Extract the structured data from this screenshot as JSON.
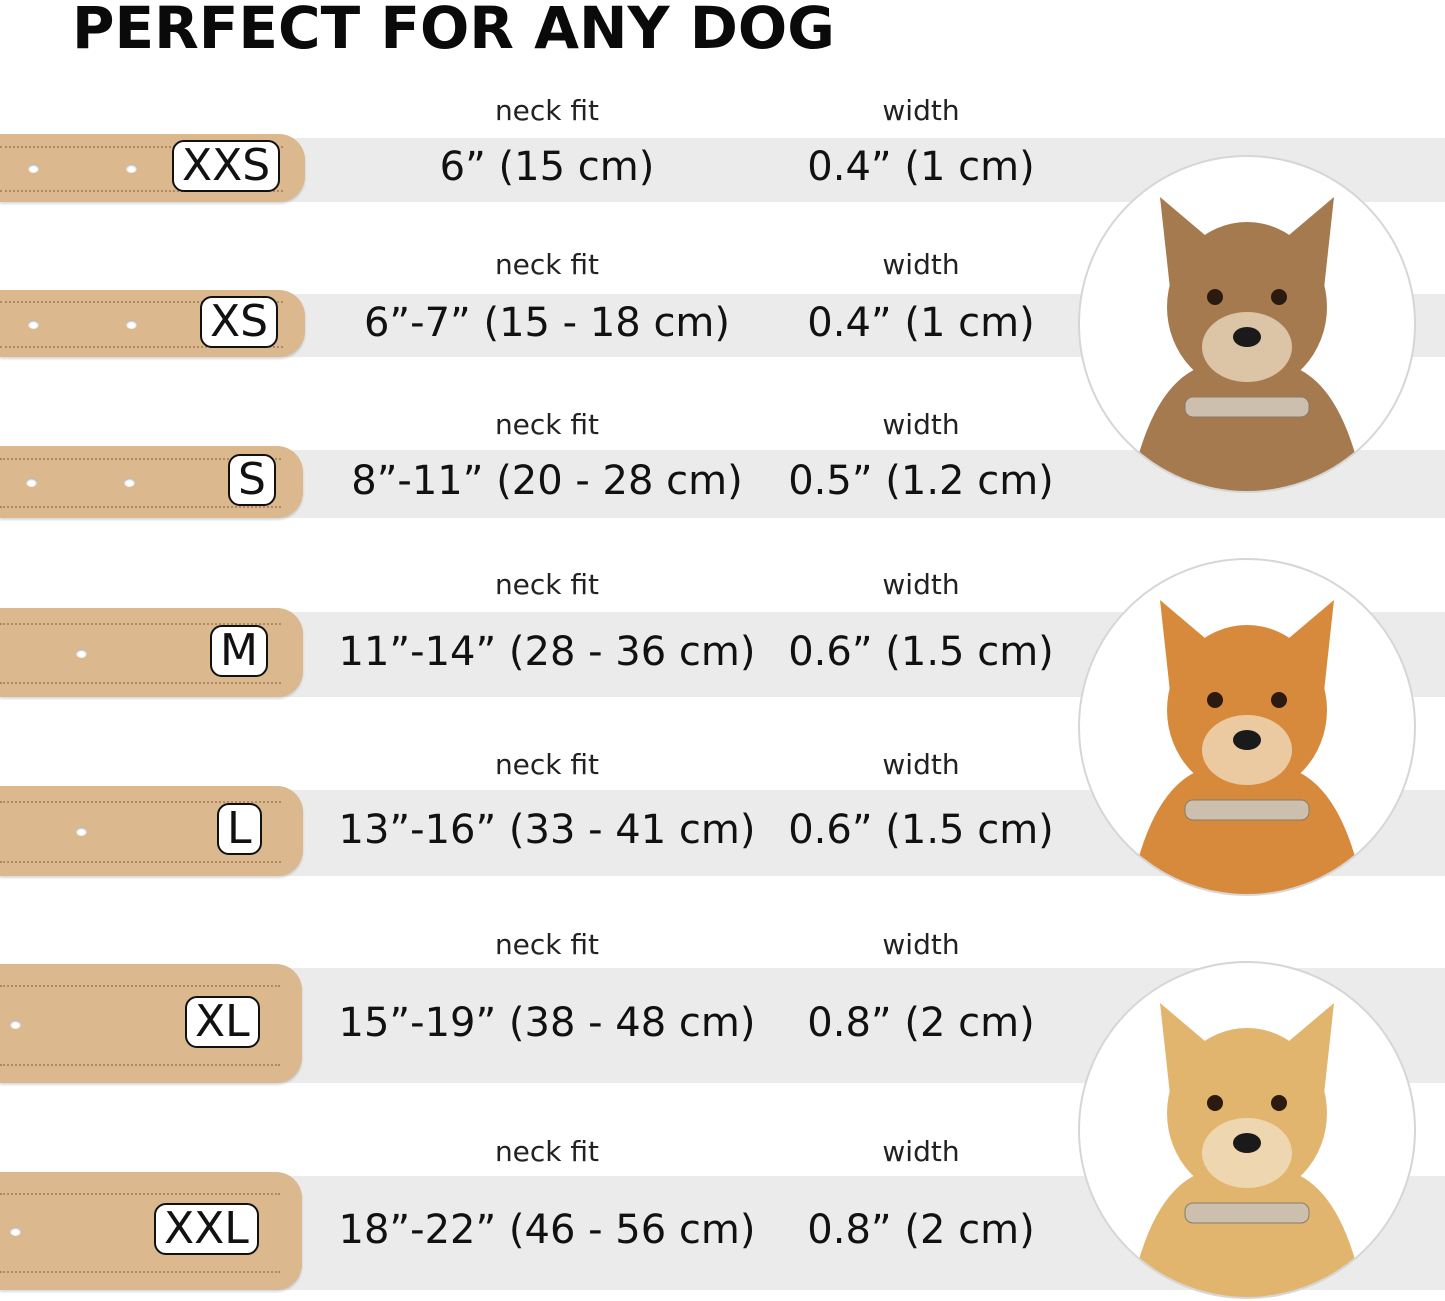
{
  "title": "PERFECT FOR ANY DOG",
  "column_labels": {
    "neck_fit": "neck fit",
    "width": "width"
  },
  "colors": {
    "band": "#ebebeb",
    "collar": "#dbb88e",
    "badge_border": "#111111"
  },
  "sizes": [
    {
      "size": "XXS",
      "neck_fit": "6” (15 cm)",
      "width": "0.4” (1 cm)"
    },
    {
      "size": "XS",
      "neck_fit": "6”-7” (15 - 18 cm)",
      "width": "0.4” (1 cm)"
    },
    {
      "size": "S",
      "neck_fit": "8”-11” (20 - 28 cm)",
      "width": "0.5” (1.2 cm)"
    },
    {
      "size": "M",
      "neck_fit": "11”-14” (28 - 36 cm)",
      "width": "0.6” (1.5 cm)"
    },
    {
      "size": "L",
      "neck_fit": "13”-16” (33 - 41 cm)",
      "width": "0.6” (1.5 cm)"
    },
    {
      "size": "XL",
      "neck_fit": "15”-19” (38 - 48 cm)",
      "width": "0.8” (2 cm)"
    },
    {
      "size": "XXL",
      "neck_fit": "18”-22” (46 - 56 cm)",
      "width": "0.8” (2 cm)"
    }
  ],
  "dog_photos": [
    {
      "icon": "small-terrier-dog-photo",
      "color": "#a57a4f"
    },
    {
      "icon": "corgi-dog-photo",
      "color": "#d88a3c"
    },
    {
      "icon": "labrador-dog-photo",
      "color": "#e2b56e"
    }
  ]
}
